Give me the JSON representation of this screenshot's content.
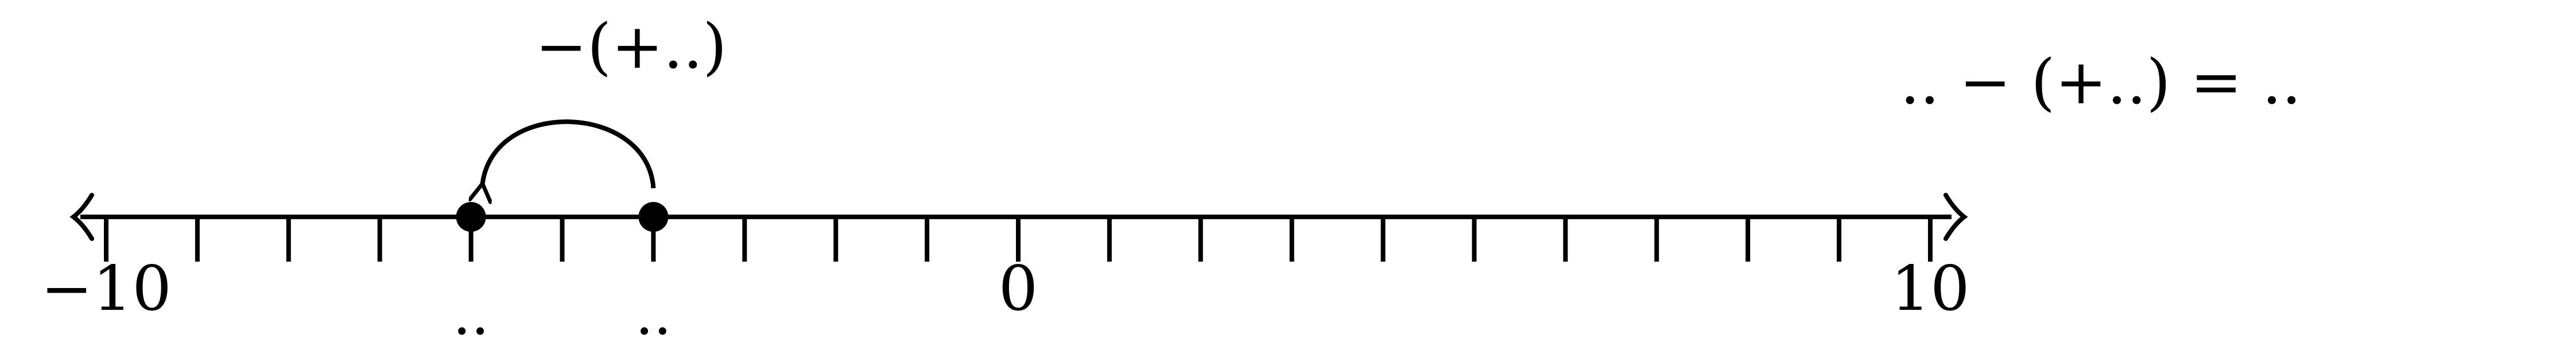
{
  "number_line": {
    "min": -10,
    "max": 10,
    "step": 1,
    "labeled_ticks": [
      {
        "value": -10,
        "label": "−10"
      },
      {
        "value": 0,
        "label": "0"
      },
      {
        "value": 10,
        "label": "10"
      }
    ]
  },
  "points": [
    {
      "value": -6,
      "label": ".."
    },
    {
      "value": -4,
      "label": ".."
    }
  ],
  "jump": {
    "from": -4,
    "to": -6,
    "label": "−(+..)"
  },
  "equation": ".. − (+..) = .."
}
